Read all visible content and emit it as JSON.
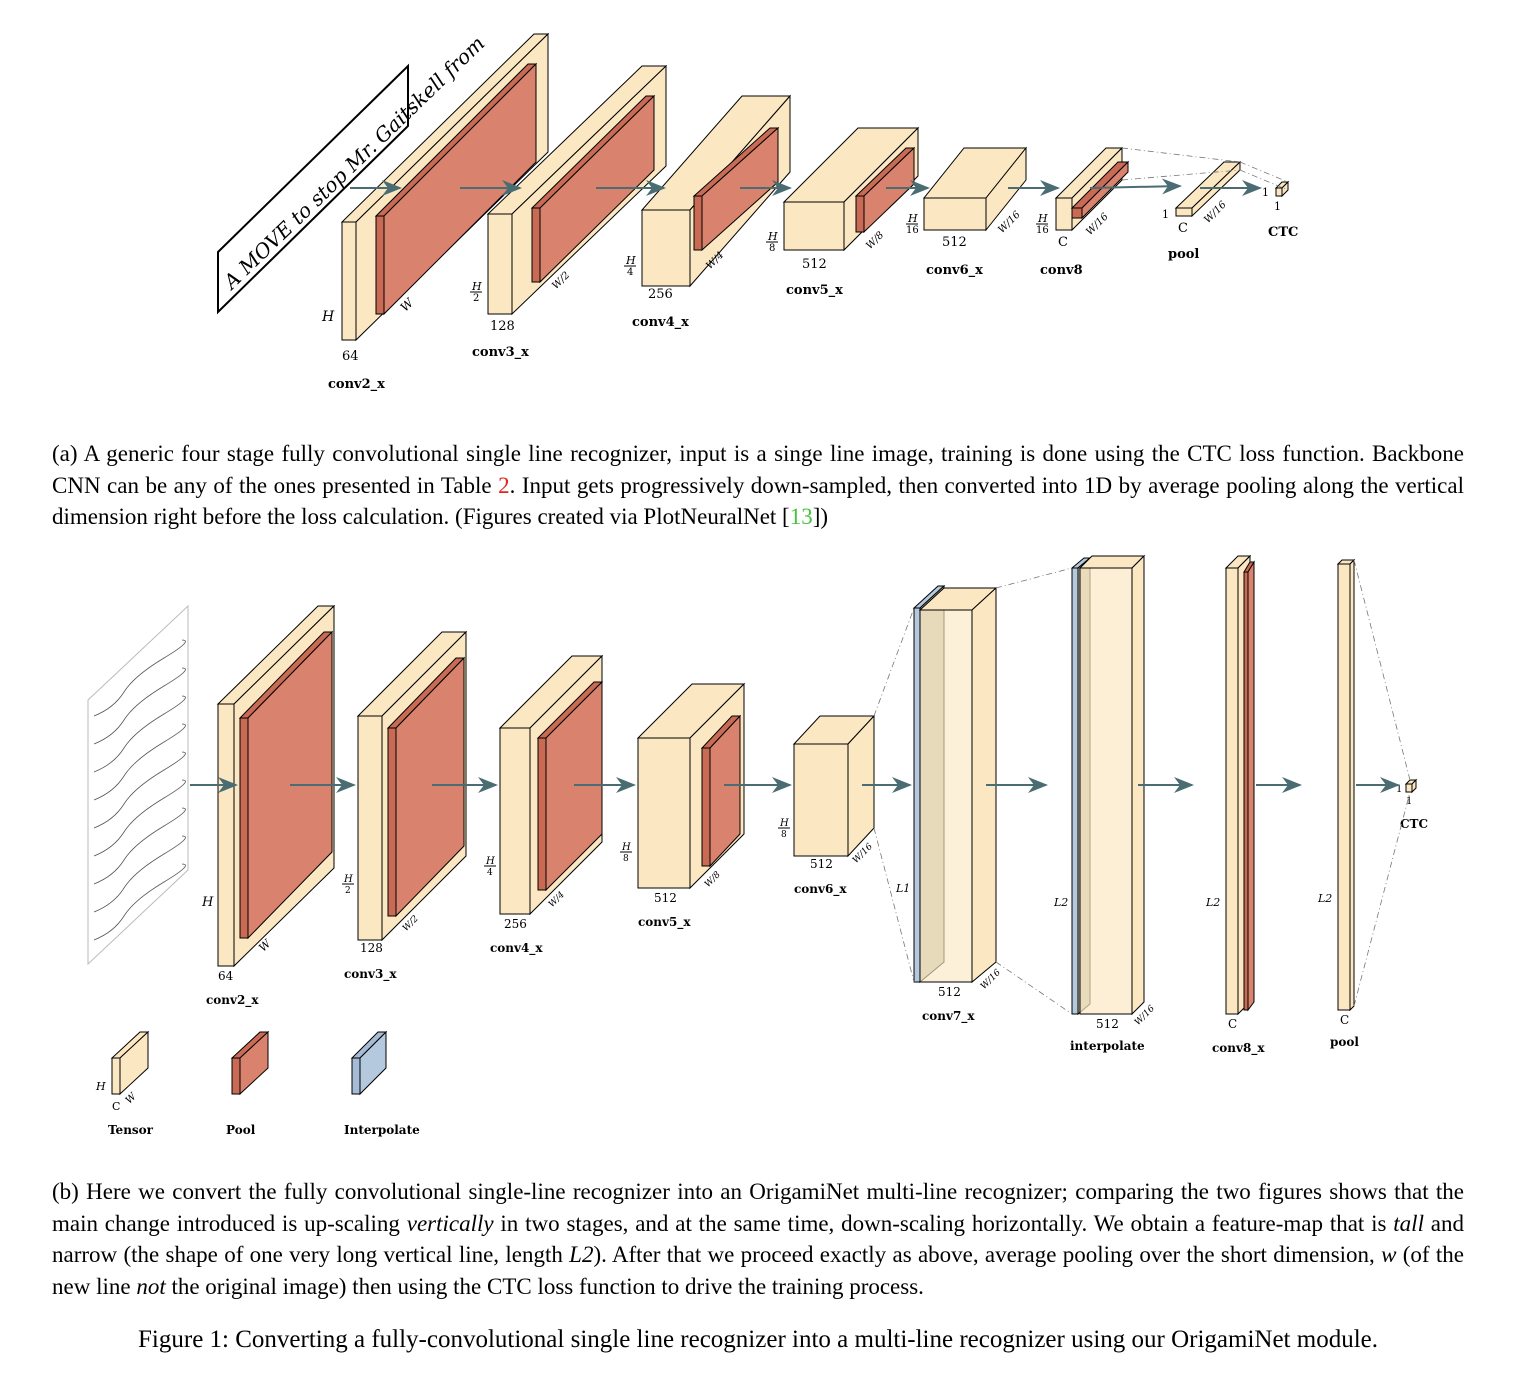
{
  "figure_a": {
    "input_label": "A MOVE to stop Mr. Gaitskell from",
    "H": "H",
    "W": "W",
    "C": "C",
    "H2": "H",
    "two": "2",
    "W2": "W/2",
    "H4": "H",
    "four": "4",
    "W4": "W/4",
    "H8": "H",
    "eight": "8",
    "W8": "W/8",
    "H16": "H",
    "sixteen": "16",
    "W16": "W/16",
    "one": "1",
    "ch64": "64",
    "ch128": "128",
    "ch256": "256",
    "ch512": "512",
    "layers": [
      "conv2_x",
      "conv3_x",
      "conv4_x",
      "conv5_x",
      "conv6_x",
      "conv8",
      "pool",
      "CTC"
    ]
  },
  "caption_a": {
    "part1": "(a) A generic four stage fully convolutional single line recognizer, input is a singe line image, training is done using the CTC loss function. Backbone CNN can be any of the ones presented in Table ",
    "table_ref": "2",
    "part2": ". Input gets progressively down-sampled, then converted into 1D by average pooling along the vertical dimension right before the loss calculation. (Figures created via PlotNeuralNet [",
    "cite_ref": "13",
    "part3": "])"
  },
  "figure_b": {
    "L1": "L1",
    "L2": "L2",
    "layers": [
      "conv2_x",
      "conv3_x",
      "conv4_x",
      "conv5_x",
      "conv6_x",
      "conv7_x",
      "interpolate",
      "conv8_x",
      "pool",
      "CTC"
    ],
    "legend": [
      "Tensor",
      "Pool",
      "Interpolate"
    ]
  },
  "caption_b": {
    "t1": "(b) Here we convert the fully convolutional single-line recognizer into an OrigamiNet multi-line recognizer; comparing the two figures shows that the main change introduced is up-scaling ",
    "t1_em": "vertically",
    "t2": " in two stages, and at the same time, down-scaling horizontally. We obtain a feature-map that is ",
    "t2_em": "tall",
    "t3": " and narrow (the shape of one very long vertical line, length ",
    "t3_math": "L2",
    "t4": "). After that we proceed exactly as above, average pooling over the short dimension, ",
    "t4_math": "w",
    "t5": " (of the new line ",
    "t5_em": "not",
    "t6": " the original image) then using the CTC loss function to drive the training process."
  },
  "figure_title": "Figure 1: Converting a fully-convolutional single line recognizer into a multi-line recognizer using our OrigamiNet module.",
  "colors": {
    "tensor": "#fbe8c3",
    "pool": "#d9826d",
    "interpolate": "#b4c8de",
    "arrow": "#4a6d73"
  }
}
